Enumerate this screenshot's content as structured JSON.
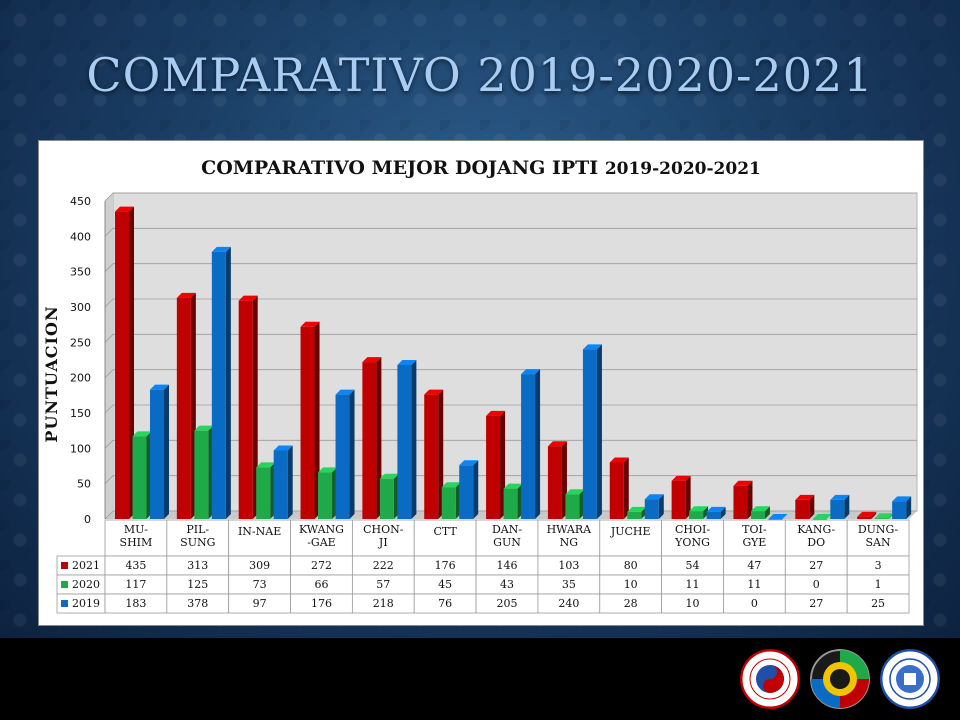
{
  "slide_title": "COMPARATIVO 2019-2020-2021",
  "colors": {
    "2021": "#c00000",
    "2020": "#1faa4a",
    "2019": "#0a6bc4"
  },
  "chart_data": {
    "type": "bar",
    "title_bold": "COMPARATIVO MEJOR DOJANG IPTI",
    "title_rest": "2019-2020-2021",
    "ylabel": "PUNTUACION",
    "xlabel": "",
    "ylim": [
      0,
      450
    ],
    "yticks": [
      "0",
      "50",
      "100",
      "150",
      "200",
      "250",
      "300",
      "350",
      "400",
      "450"
    ],
    "grid": true,
    "legend": "data-table",
    "categories": [
      [
        "MU-",
        "SHIM"
      ],
      [
        "PIL-",
        "SUNG"
      ],
      [
        "IN-NAE"
      ],
      [
        "KWANG",
        "-GAE"
      ],
      [
        "CHON-",
        "JI"
      ],
      [
        "CTT"
      ],
      [
        "DAN-",
        "GUN"
      ],
      [
        "HWARA",
        "NG"
      ],
      [
        "JUCHE"
      ],
      [
        "CHOI-",
        "YONG"
      ],
      [
        "TOI-",
        "GYE"
      ],
      [
        "KANG-",
        "DO"
      ],
      [
        "DUNG-",
        "SAN"
      ]
    ],
    "series": [
      {
        "name": "2021",
        "values": [
          435,
          313,
          309,
          272,
          222,
          176,
          146,
          103,
          80,
          54,
          47,
          27,
          3
        ]
      },
      {
        "name": "2020",
        "values": [
          117,
          125,
          73,
          66,
          57,
          45,
          43,
          35,
          10,
          11,
          11,
          0,
          1
        ]
      },
      {
        "name": "2019",
        "values": [
          183,
          378,
          97,
          176,
          218,
          76,
          205,
          240,
          28,
          10,
          0,
          27,
          25
        ]
      }
    ]
  }
}
